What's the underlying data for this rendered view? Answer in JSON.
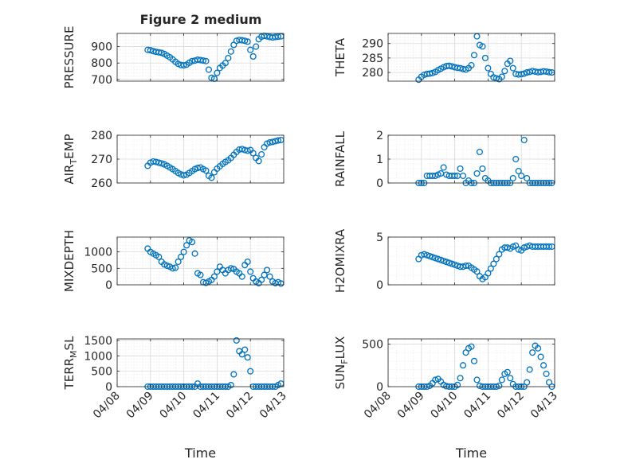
{
  "figure": {
    "title": "Figure 2 medium"
  },
  "colors": {
    "marker": "#0072bd",
    "axis": "#262626",
    "grid": "#d9d9d9",
    "minor_grid": "#e8e8e8",
    "background": "#ffffff"
  },
  "chart_data": [
    {
      "type": "scatter",
      "ylabel": "PRESSURE",
      "ytick_labels": [
        "700",
        "800",
        "900"
      ],
      "yticks": [
        700,
        800,
        900
      ],
      "ylim": [
        690,
        980
      ],
      "grid": true,
      "x": [
        "04/08 22:00",
        "04/09 00:00",
        "04/09 02:00",
        "04/09 04:00",
        "04/09 06:00",
        "04/09 08:00",
        "04/09 10:00",
        "04/09 12:00",
        "04/09 14:00",
        "04/09 16:00",
        "04/09 18:00",
        "04/09 20:00",
        "04/09 22:00",
        "04/10 00:00",
        "04/10 02:00",
        "04/10 04:00",
        "04/10 06:00",
        "04/10 08:00",
        "04/10 10:00",
        "04/10 12:00",
        "04/10 14:00",
        "04/10 16:00",
        "04/10 18:00",
        "04/10 20:00",
        "04/10 22:00",
        "04/11 00:00",
        "04/11 02:00",
        "04/11 04:00",
        "04/11 06:00",
        "04/11 08:00",
        "04/11 10:00",
        "04/11 12:00",
        "04/11 14:00",
        "04/11 16:00",
        "04/11 18:00",
        "04/11 20:00",
        "04/11 22:00",
        "04/12 00:00",
        "04/12 02:00",
        "04/12 04:00",
        "04/12 06:00",
        "04/12 08:00",
        "04/12 10:00",
        "04/12 12:00",
        "04/12 14:00",
        "04/12 16:00",
        "04/12 18:00",
        "04/12 20:00",
        "04/12 22:00"
      ],
      "y": [
        880,
        878,
        872,
        868,
        865,
        862,
        855,
        845,
        835,
        822,
        808,
        795,
        788,
        786,
        790,
        802,
        812,
        815,
        820,
        818,
        815,
        812,
        760,
        710,
        705,
        740,
        770,
        785,
        800,
        830,
        870,
        910,
        935,
        940,
        938,
        935,
        930,
        880,
        840,
        900,
        945,
        960,
        965,
        962,
        958,
        955,
        958,
        960,
        962
      ]
    },
    {
      "type": "scatter",
      "ylabel": "THETA",
      "ytick_labels": [
        "280",
        "285",
        "290"
      ],
      "yticks": [
        280,
        285,
        290
      ],
      "ylim": [
        277,
        293.5
      ],
      "grid": true,
      "x": [
        "04/08 22:00",
        "04/09 00:00",
        "04/09 02:00",
        "04/09 04:00",
        "04/09 06:00",
        "04/09 08:00",
        "04/09 10:00",
        "04/09 12:00",
        "04/09 14:00",
        "04/09 16:00",
        "04/09 18:00",
        "04/09 20:00",
        "04/09 22:00",
        "04/10 00:00",
        "04/10 02:00",
        "04/10 04:00",
        "04/10 06:00",
        "04/10 08:00",
        "04/10 10:00",
        "04/10 12:00",
        "04/10 14:00",
        "04/10 16:00",
        "04/10 18:00",
        "04/10 20:00",
        "04/10 22:00",
        "04/11 00:00",
        "04/11 02:00",
        "04/11 04:00",
        "04/11 06:00",
        "04/11 08:00",
        "04/11 10:00",
        "04/11 12:00",
        "04/11 14:00",
        "04/11 16:00",
        "04/11 18:00",
        "04/11 20:00",
        "04/11 22:00",
        "04/12 00:00",
        "04/12 02:00",
        "04/12 04:00",
        "04/12 06:00",
        "04/12 08:00",
        "04/12 10:00",
        "04/12 12:00",
        "04/12 14:00",
        "04/12 16:00",
        "04/12 18:00",
        "04/12 20:00",
        "04/12 22:00"
      ],
      "y": [
        277.5,
        278.5,
        279.2,
        279.5,
        279.6,
        279.8,
        280.2,
        280.8,
        281.3,
        281.8,
        282.2,
        282.3,
        282.1,
        281.8,
        281.6,
        281.5,
        281.2,
        281,
        281.5,
        282.5,
        286,
        292.5,
        289.5,
        289,
        285,
        281.5,
        279.5,
        278.3,
        278,
        277.7,
        278.5,
        280.5,
        283,
        284,
        281.5,
        279.5,
        279.3,
        279.4,
        279.6,
        280,
        280.2,
        280.5,
        280.3,
        280.1,
        280.2,
        280.4,
        280.3,
        280.1,
        280
      ]
    },
    {
      "type": "scatter",
      "ylabel": "AIR_T_EMP",
      "ytick_labels": [
        "260",
        "270",
        "280"
      ],
      "yticks": [
        260,
        270,
        280
      ],
      "ylim": [
        260,
        280
      ],
      "grid": true,
      "x": [
        "04/08 22:00",
        "04/09 00:00",
        "04/09 02:00",
        "04/09 04:00",
        "04/09 06:00",
        "04/09 08:00",
        "04/09 10:00",
        "04/09 12:00",
        "04/09 14:00",
        "04/09 16:00",
        "04/09 18:00",
        "04/09 20:00",
        "04/09 22:00",
        "04/10 00:00",
        "04/10 02:00",
        "04/10 04:00",
        "04/10 06:00",
        "04/10 08:00",
        "04/10 10:00",
        "04/10 12:00",
        "04/10 14:00",
        "04/10 16:00",
        "04/10 18:00",
        "04/10 20:00",
        "04/10 22:00",
        "04/11 00:00",
        "04/11 02:00",
        "04/11 04:00",
        "04/11 06:00",
        "04/11 08:00",
        "04/11 10:00",
        "04/11 12:00",
        "04/11 14:00",
        "04/11 16:00",
        "04/11 18:00",
        "04/11 20:00",
        "04/11 22:00",
        "04/12 00:00",
        "04/12 02:00",
        "04/12 04:00",
        "04/12 06:00",
        "04/12 08:00",
        "04/12 10:00",
        "04/12 12:00",
        "04/12 14:00",
        "04/12 16:00",
        "04/12 18:00",
        "04/12 20:00",
        "04/12 22:00"
      ],
      "y": [
        267.2,
        268.5,
        269,
        268.8,
        268.5,
        268.2,
        267.8,
        267.2,
        266.5,
        265.8,
        265,
        264.2,
        263.6,
        263.2,
        263.5,
        264.2,
        265,
        265.8,
        266.3,
        266.5,
        265.8,
        265.2,
        263,
        262.2,
        264.5,
        266,
        267,
        268,
        268.8,
        269.5,
        270.5,
        271.8,
        273,
        274,
        274.2,
        273.8,
        273.5,
        273.8,
        272.5,
        270.5,
        269.2,
        272,
        275,
        276.5,
        277,
        277.2,
        277.5,
        277.8,
        278
      ]
    },
    {
      "type": "scatter",
      "ylabel": "RAINFALL",
      "ytick_labels": [
        "0",
        "1",
        "2"
      ],
      "yticks": [
        0,
        1,
        2
      ],
      "ylim": [
        0,
        2
      ],
      "grid": true,
      "x": [
        "04/08 22:00",
        "04/09 00:00",
        "04/09 02:00",
        "04/09 04:00",
        "04/09 06:00",
        "04/09 08:00",
        "04/09 10:00",
        "04/09 12:00",
        "04/09 14:00",
        "04/09 16:00",
        "04/09 18:00",
        "04/09 20:00",
        "04/09 22:00",
        "04/10 00:00",
        "04/10 02:00",
        "04/10 04:00",
        "04/10 06:00",
        "04/10 08:00",
        "04/10 10:00",
        "04/10 12:00",
        "04/10 14:00",
        "04/10 16:00",
        "04/10 18:00",
        "04/10 20:00",
        "04/10 22:00",
        "04/11 00:00",
        "04/11 02:00",
        "04/11 04:00",
        "04/11 06:00",
        "04/11 08:00",
        "04/11 10:00",
        "04/11 12:00",
        "04/11 14:00",
        "04/11 16:00",
        "04/11 18:00",
        "04/11 20:00",
        "04/11 22:00",
        "04/12 00:00",
        "04/12 02:00",
        "04/12 04:00",
        "04/12 06:00",
        "04/12 08:00",
        "04/12 10:00",
        "04/12 12:00",
        "04/12 14:00",
        "04/12 16:00",
        "04/12 18:00",
        "04/12 20:00",
        "04/12 22:00"
      ],
      "y": [
        0,
        0,
        0,
        0.3,
        0.3,
        0.3,
        0.3,
        0.35,
        0.4,
        0.65,
        0.35,
        0.3,
        0.3,
        0.3,
        0.3,
        0.6,
        0.3,
        0,
        0.1,
        0,
        0,
        0.4,
        1.3,
        0.6,
        0.2,
        0.1,
        0,
        0,
        0,
        0,
        0,
        0,
        0,
        0,
        0.2,
        1,
        0.5,
        0.3,
        1.8,
        0.2,
        0,
        0,
        0,
        0,
        0,
        0,
        0,
        0,
        0
      ]
    },
    {
      "type": "scatter",
      "ylabel": "MIXDEPTH",
      "ytick_labels": [
        "0",
        "500",
        "1000"
      ],
      "yticks": [
        0,
        500,
        1000
      ],
      "ylim": [
        0,
        1450
      ],
      "grid": true,
      "x": [
        "04/08 22:00",
        "04/09 00:00",
        "04/09 02:00",
        "04/09 04:00",
        "04/09 06:00",
        "04/09 08:00",
        "04/09 10:00",
        "04/09 12:00",
        "04/09 14:00",
        "04/09 16:00",
        "04/09 18:00",
        "04/09 20:00",
        "04/09 22:00",
        "04/10 00:00",
        "04/10 02:00",
        "04/10 04:00",
        "04/10 06:00",
        "04/10 08:00",
        "04/10 10:00",
        "04/10 12:00",
        "04/10 14:00",
        "04/10 16:00",
        "04/10 18:00",
        "04/10 20:00",
        "04/10 22:00",
        "04/11 00:00",
        "04/11 02:00",
        "04/11 04:00",
        "04/11 06:00",
        "04/11 08:00",
        "04/11 10:00",
        "04/11 12:00",
        "04/11 14:00",
        "04/11 16:00",
        "04/11 18:00",
        "04/11 20:00",
        "04/11 22:00",
        "04/12 00:00",
        "04/12 02:00",
        "04/12 04:00",
        "04/12 06:00",
        "04/12 08:00",
        "04/12 10:00",
        "04/12 12:00",
        "04/12 14:00",
        "04/12 16:00",
        "04/12 18:00",
        "04/12 20:00",
        "04/12 22:00"
      ],
      "y": [
        1100,
        1000,
        950,
        900,
        850,
        700,
        620,
        580,
        550,
        500,
        520,
        700,
        850,
        1000,
        1200,
        1350,
        1300,
        950,
        350,
        300,
        80,
        60,
        100,
        150,
        250,
        400,
        550,
        450,
        350,
        450,
        500,
        480,
        400,
        350,
        250,
        600,
        700,
        400,
        200,
        100,
        50,
        150,
        300,
        450,
        250,
        100,
        50,
        80,
        40
      ]
    },
    {
      "type": "scatter",
      "ylabel": "H2OMIXRA",
      "ytick_labels": [
        "0",
        "5"
      ],
      "yticks": [
        0,
        5
      ],
      "ylim": [
        0,
        5
      ],
      "grid": true,
      "x": [
        "04/08 22:00",
        "04/09 00:00",
        "04/09 02:00",
        "04/09 04:00",
        "04/09 06:00",
        "04/09 08:00",
        "04/09 10:00",
        "04/09 12:00",
        "04/09 14:00",
        "04/09 16:00",
        "04/09 18:00",
        "04/09 20:00",
        "04/09 22:00",
        "04/10 00:00",
        "04/10 02:00",
        "04/10 04:00",
        "04/10 06:00",
        "04/10 08:00",
        "04/10 10:00",
        "04/10 12:00",
        "04/10 14:00",
        "04/10 16:00",
        "04/10 18:00",
        "04/10 20:00",
        "04/10 22:00",
        "04/11 00:00",
        "04/11 02:00",
        "04/11 04:00",
        "04/11 06:00",
        "04/11 08:00",
        "04/11 10:00",
        "04/11 12:00",
        "04/11 14:00",
        "04/11 16:00",
        "04/11 18:00",
        "04/11 20:00",
        "04/11 22:00",
        "04/12 00:00",
        "04/12 02:00",
        "04/12 04:00",
        "04/12 06:00",
        "04/12 08:00",
        "04/12 10:00",
        "04/12 12:00",
        "04/12 14:00",
        "04/12 16:00",
        "04/12 18:00",
        "04/12 20:00",
        "04/12 22:00"
      ],
      "y": [
        2.7,
        3.1,
        3.2,
        3.1,
        3,
        2.9,
        2.8,
        2.7,
        2.6,
        2.5,
        2.4,
        2.3,
        2.2,
        2.1,
        2,
        1.9,
        1.9,
        2,
        2,
        1.8,
        1.6,
        1.4,
        0.9,
        0.6,
        0.8,
        1.2,
        1.7,
        2.2,
        2.7,
        3.2,
        3.7,
        3.9,
        3.9,
        3.8,
        4,
        4.1,
        3.7,
        3.6,
        3.9,
        4,
        4.1,
        4,
        4,
        4,
        4,
        4,
        4,
        4,
        4
      ]
    },
    {
      "type": "scatter",
      "ylabel": "TERR_M_SL",
      "ytick_labels": [
        "0",
        "500",
        "1000",
        "1500"
      ],
      "yticks": [
        0,
        500,
        1000,
        1500
      ],
      "ylim": [
        0,
        1550
      ],
      "grid": true,
      "x": [
        "04/08 22:00",
        "04/09 00:00",
        "04/09 02:00",
        "04/09 04:00",
        "04/09 06:00",
        "04/09 08:00",
        "04/09 10:00",
        "04/09 12:00",
        "04/09 14:00",
        "04/09 16:00",
        "04/09 18:00",
        "04/09 20:00",
        "04/09 22:00",
        "04/10 00:00",
        "04/10 02:00",
        "04/10 04:00",
        "04/10 06:00",
        "04/10 08:00",
        "04/10 10:00",
        "04/10 12:00",
        "04/10 14:00",
        "04/10 16:00",
        "04/10 18:00",
        "04/10 20:00",
        "04/10 22:00",
        "04/11 00:00",
        "04/11 02:00",
        "04/11 04:00",
        "04/11 06:00",
        "04/11 08:00",
        "04/11 10:00",
        "04/11 12:00",
        "04/11 14:00",
        "04/11 16:00",
        "04/11 18:00",
        "04/11 20:00",
        "04/11 22:00",
        "04/12 00:00",
        "04/12 02:00",
        "04/12 04:00",
        "04/12 06:00",
        "04/12 08:00",
        "04/12 10:00",
        "04/12 12:00",
        "04/12 14:00",
        "04/12 16:00",
        "04/12 18:00",
        "04/12 20:00",
        "04/12 22:00"
      ],
      "y": [
        0,
        0,
        0,
        0,
        0,
        0,
        0,
        0,
        0,
        0,
        0,
        0,
        0,
        0,
        0,
        0,
        0,
        0,
        100,
        0,
        0,
        0,
        0,
        0,
        0,
        0,
        0,
        0,
        0,
        0,
        50,
        400,
        1500,
        1150,
        1050,
        1200,
        950,
        500,
        0,
        0,
        0,
        0,
        0,
        0,
        0,
        0,
        0,
        50,
        100
      ]
    },
    {
      "type": "scatter",
      "ylabel": "SUN_F_LUX",
      "ytick_labels": [
        "0",
        "500"
      ],
      "yticks": [
        0,
        500
      ],
      "ylim": [
        0,
        560
      ],
      "grid": true,
      "x": [
        "04/08 22:00",
        "04/09 00:00",
        "04/09 02:00",
        "04/09 04:00",
        "04/09 06:00",
        "04/09 08:00",
        "04/09 10:00",
        "04/09 12:00",
        "04/09 14:00",
        "04/09 16:00",
        "04/09 18:00",
        "04/09 20:00",
        "04/09 22:00",
        "04/10 00:00",
        "04/10 02:00",
        "04/10 04:00",
        "04/10 06:00",
        "04/10 08:00",
        "04/10 10:00",
        "04/10 12:00",
        "04/10 14:00",
        "04/10 16:00",
        "04/10 18:00",
        "04/10 20:00",
        "04/10 22:00",
        "04/11 00:00",
        "04/11 02:00",
        "04/11 04:00",
        "04/11 06:00",
        "04/11 08:00",
        "04/11 10:00",
        "04/11 12:00",
        "04/11 14:00",
        "04/11 16:00",
        "04/11 18:00",
        "04/11 20:00",
        "04/11 22:00",
        "04/12 00:00",
        "04/12 02:00",
        "04/12 04:00",
        "04/12 06:00",
        "04/12 08:00",
        "04/12 10:00",
        "04/12 12:00",
        "04/12 14:00",
        "04/12 16:00",
        "04/12 18:00",
        "04/12 20:00",
        "04/12 22:00"
      ],
      "y": [
        0,
        0,
        0,
        0,
        10,
        40,
        80,
        90,
        60,
        20,
        5,
        0,
        0,
        0,
        20,
        100,
        250,
        400,
        450,
        470,
        300,
        80,
        10,
        0,
        0,
        0,
        0,
        0,
        0,
        10,
        80,
        150,
        170,
        100,
        30,
        0,
        0,
        0,
        0,
        50,
        200,
        400,
        480,
        450,
        350,
        250,
        150,
        50,
        0
      ]
    }
  ],
  "x_axis": {
    "xlim": [
      "04/08 00:00",
      "04/13 00:00"
    ],
    "ticks": [
      "04/08",
      "04/09",
      "04/10",
      "04/11",
      "04/12",
      "04/13"
    ],
    "xlabel": "Time"
  }
}
